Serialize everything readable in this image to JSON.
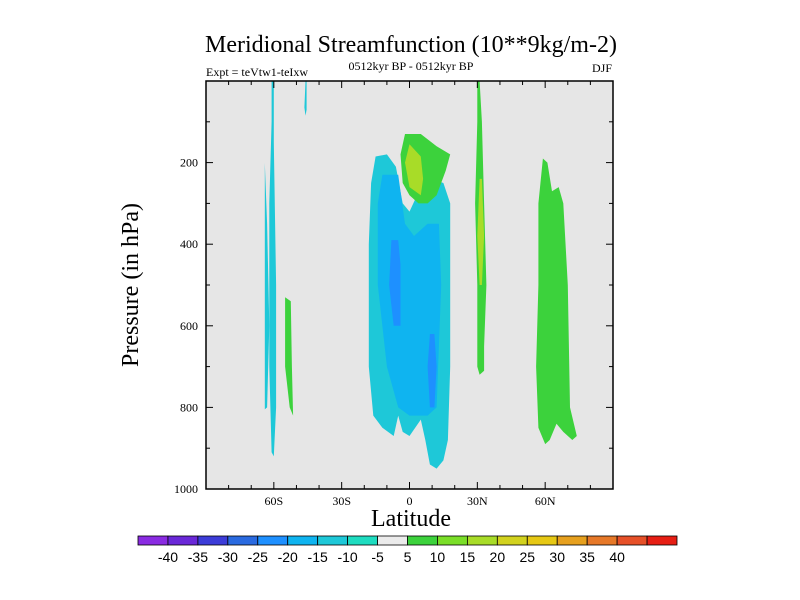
{
  "chart_data": {
    "type": "heatmap",
    "title": "Meridional Streamfunction (10**9kg/m-2)",
    "subtitle_left": "Expt = teVtw1-teIxw",
    "subtitle_center": "0512kyr BP - 0512kyr BP",
    "subtitle_right": "DJF",
    "xlabel": "Latitude",
    "ylabel": "Pressure (in hPa)",
    "xlim": [
      -90,
      90
    ],
    "ylim": [
      1000,
      0
    ],
    "y_reversed": true,
    "background_color": "#e6e6e6",
    "x_ticks": [
      {
        "value": -60,
        "label": "60S"
      },
      {
        "value": -30,
        "label": "30S"
      },
      {
        "value": 0,
        "label": "0"
      },
      {
        "value": 30,
        "label": "30N"
      },
      {
        "value": 60,
        "label": "60N"
      }
    ],
    "y_ticks": [
      {
        "value": 200,
        "label": "200"
      },
      {
        "value": 400,
        "label": "400"
      },
      {
        "value": 600,
        "label": "600"
      },
      {
        "value": 800,
        "label": "800"
      },
      {
        "value": 1000,
        "label": "1000"
      }
    ],
    "colorbar": {
      "colors": [
        "#8a2be2",
        "#6a28d8",
        "#3c3cd8",
        "#2a6ae0",
        "#1e90ff",
        "#0fb4f0",
        "#1ec8d8",
        "#1edcc0",
        "#ebebeb",
        "#3cd23c",
        "#7ade28",
        "#a8dc28",
        "#d2d21e",
        "#e6c814",
        "#e6a01e",
        "#e67828",
        "#e65028",
        "#e61e14"
      ],
      "labels": [
        "-40",
        "-35",
        "-30",
        "-25",
        "-20",
        "-15",
        "-10",
        "-5",
        "5",
        "10",
        "15",
        "20",
        "25",
        "30",
        "35",
        "40"
      ]
    },
    "regions": [
      {
        "name": "region-negative-sh-narrow-1",
        "color": "#1ec8d8",
        "points": [
          [
            -64,
            200
          ],
          [
            -63,
            350
          ],
          [
            -62,
            600
          ],
          [
            -63,
            800
          ],
          [
            -64,
            805
          ]
        ]
      },
      {
        "name": "region-negative-sh-column",
        "color": "#1ec8d8",
        "points": [
          [
            -61,
            0
          ],
          [
            -60,
            0
          ],
          [
            -60,
            150
          ],
          [
            -59,
            500
          ],
          [
            -59,
            800
          ],
          [
            -60,
            920
          ],
          [
            -61,
            910
          ],
          [
            -62,
            700
          ],
          [
            -62,
            300
          ],
          [
            -61,
            100
          ]
        ]
      },
      {
        "name": "region-negative-sh-upper-sliver",
        "color": "#1ec8d8",
        "points": [
          [
            -46,
            0
          ],
          [
            -45.5,
            0
          ],
          [
            -45.5,
            70
          ],
          [
            -46,
            85
          ],
          [
            -46.5,
            65
          ]
        ]
      },
      {
        "name": "region-negative-sh-lower-sliver",
        "color": "#3cd23c",
        "points": [
          [
            -55,
            530
          ],
          [
            -52.5,
            540
          ],
          [
            -52,
            700
          ],
          [
            -51.5,
            820
          ],
          [
            -53,
            800
          ],
          [
            -55,
            700
          ]
        ]
      },
      {
        "name": "region-negative-main-band",
        "color": "#1ec8d8",
        "points": [
          [
            -15,
            185
          ],
          [
            -10,
            180
          ],
          [
            -6,
            210
          ],
          [
            -3,
            300
          ],
          [
            0,
            320
          ],
          [
            5,
            260
          ],
          [
            10,
            240
          ],
          [
            15,
            250
          ],
          [
            18,
            300
          ],
          [
            18,
            700
          ],
          [
            17,
            880
          ],
          [
            15,
            930
          ],
          [
            12,
            950
          ],
          [
            9,
            940
          ],
          [
            7,
            880
          ],
          [
            5,
            830
          ],
          [
            0,
            870
          ],
          [
            -3,
            860
          ],
          [
            -5,
            820
          ],
          [
            -7,
            870
          ],
          [
            -12,
            850
          ],
          [
            -16,
            820
          ],
          [
            -18,
            700
          ],
          [
            -18,
            400
          ],
          [
            -17,
            250
          ]
        ]
      },
      {
        "name": "region-negative-inner-1",
        "color": "#0fb4f0",
        "points": [
          [
            -12,
            230
          ],
          [
            -5,
            230
          ],
          [
            -2,
            350
          ],
          [
            2,
            380
          ],
          [
            8,
            350
          ],
          [
            13,
            350
          ],
          [
            14,
            500
          ],
          [
            12,
            800
          ],
          [
            8,
            820
          ],
          [
            5,
            820
          ],
          [
            0,
            820
          ],
          [
            -5,
            800
          ],
          [
            -10,
            700
          ],
          [
            -14,
            500
          ],
          [
            -14,
            300
          ]
        ]
      },
      {
        "name": "region-negative-inner-2",
        "color": "#1e90ff",
        "points": [
          [
            -8,
            390
          ],
          [
            -5,
            390
          ],
          [
            -4,
            450
          ],
          [
            -4,
            600
          ],
          [
            -7,
            600
          ],
          [
            -9,
            500
          ]
        ]
      },
      {
        "name": "region-negative-inner-3",
        "color": "#1e90ff",
        "points": [
          [
            9,
            620
          ],
          [
            11,
            620
          ],
          [
            12,
            700
          ],
          [
            11,
            800
          ],
          [
            9,
            800
          ],
          [
            8,
            700
          ]
        ]
      },
      {
        "name": "region-positive-tropical-upper",
        "color": "#3cd23c",
        "points": [
          [
            -2,
            130
          ],
          [
            5,
            130
          ],
          [
            12,
            160
          ],
          [
            18,
            180
          ],
          [
            16,
            220
          ],
          [
            12,
            280
          ],
          [
            8,
            300
          ],
          [
            4,
            300
          ],
          [
            0,
            280
          ],
          [
            -3,
            250
          ],
          [
            -4,
            180
          ]
        ]
      },
      {
        "name": "region-positive-tropical-inner",
        "color": "#a8dc28",
        "points": [
          [
            0,
            155
          ],
          [
            5,
            185
          ],
          [
            6,
            240
          ],
          [
            5,
            280
          ],
          [
            0,
            260
          ],
          [
            -2,
            200
          ]
        ]
      },
      {
        "name": "region-positive-30n-column",
        "color": "#3cd23c",
        "points": [
          [
            30,
            0
          ],
          [
            31,
            0
          ],
          [
            32,
            100
          ],
          [
            33,
            300
          ],
          [
            34,
            500
          ],
          [
            33,
            650
          ],
          [
            33,
            710
          ],
          [
            31,
            720
          ],
          [
            30,
            700
          ],
          [
            30,
            500
          ],
          [
            29,
            300
          ],
          [
            30,
            100
          ]
        ]
      },
      {
        "name": "region-positive-30n-inner",
        "color": "#a8dc28",
        "points": [
          [
            31,
            240
          ],
          [
            32,
            240
          ],
          [
            33,
            380
          ],
          [
            32,
            500
          ],
          [
            31,
            500
          ],
          [
            30,
            380
          ]
        ]
      },
      {
        "name": "region-positive-60n-column",
        "color": "#3cd23c",
        "points": [
          [
            59,
            190
          ],
          [
            61,
            200
          ],
          [
            63,
            270
          ],
          [
            66,
            260
          ],
          [
            68,
            300
          ],
          [
            70,
            500
          ],
          [
            71,
            800
          ],
          [
            74,
            870
          ],
          [
            72,
            880
          ],
          [
            68,
            860
          ],
          [
            65,
            840
          ],
          [
            62,
            880
          ],
          [
            60,
            890
          ],
          [
            57,
            850
          ],
          [
            56,
            700
          ],
          [
            57,
            500
          ],
          [
            57,
            300
          ]
        ]
      }
    ]
  }
}
